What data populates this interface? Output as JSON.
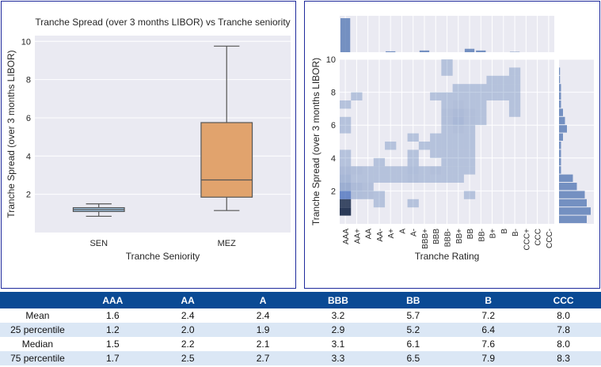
{
  "chart_data": [
    {
      "type": "box",
      "title": "Tranche Spread (over 3 months LIBOR) vs Tranche seniority",
      "xlabel": "Tranche Seniority",
      "ylabel": "Tranche Spread (over 3 months LIBOR)",
      "ylim": [
        0,
        10.3
      ],
      "yticks": [
        2,
        4,
        6,
        8,
        10
      ],
      "grid": true,
      "categories": [
        "SEN",
        "MEZ"
      ],
      "boxes": [
        {
          "name": "SEN",
          "min": 0.85,
          "q1": 1.1,
          "median": 1.2,
          "q3": 1.3,
          "max": 1.5,
          "color": "#a3c9e8"
        },
        {
          "name": "MEZ",
          "min": 1.15,
          "q1": 1.85,
          "median": 2.75,
          "q3": 5.75,
          "max": 9.75,
          "color": "#e1a36d"
        }
      ]
    },
    {
      "type": "heatmap",
      "xlabel": "Tranche Rating",
      "ylabel": "Tranche Spread (over 3 months LIBOR)",
      "x_categories": [
        "AAA",
        "AA+",
        "AA",
        "AA-",
        "A+",
        "A",
        "A-",
        "BBB+",
        "BBB",
        "BBB-",
        "BB+",
        "BB",
        "BB-",
        "B+",
        "B",
        "B-",
        "CCC+",
        "CCC",
        "CCC-"
      ],
      "ylim": [
        0,
        10
      ],
      "yticks": [
        2,
        4,
        6,
        8,
        10
      ],
      "bin_height": 0.5,
      "color": "#4c72b0",
      "cells": [
        [
          0,
          0.5,
          4
        ],
        [
          0,
          1.0,
          3.5
        ],
        [
          0,
          1.5,
          2.5
        ],
        [
          0,
          2.0,
          1.2
        ],
        [
          0,
          2.5,
          0.8
        ],
        [
          0,
          3.0,
          0.6
        ],
        [
          0,
          3.5,
          0.3
        ],
        [
          0,
          4.0,
          0.3
        ],
        [
          0,
          5.5,
          0.3
        ],
        [
          0,
          6.0,
          0.3
        ],
        [
          0,
          7.0,
          0.3
        ],
        [
          1,
          1.5,
          0.5
        ],
        [
          1,
          2.0,
          0.6
        ],
        [
          1,
          2.5,
          0.3
        ],
        [
          1,
          3.0,
          0.4
        ],
        [
          1,
          7.5,
          0.3
        ],
        [
          2,
          1.5,
          0.4
        ],
        [
          2,
          2.0,
          0.4
        ],
        [
          2,
          2.5,
          0.3
        ],
        [
          2,
          3.0,
          0.3
        ],
        [
          3,
          1.0,
          0.3
        ],
        [
          3,
          1.5,
          0.3
        ],
        [
          3,
          2.5,
          0.3
        ],
        [
          3,
          3.0,
          0.3
        ],
        [
          3,
          3.5,
          0.3
        ],
        [
          4,
          2.5,
          0.3
        ],
        [
          4,
          3.0,
          0.3
        ],
        [
          4,
          4.5,
          0.3
        ],
        [
          5,
          2.5,
          0.3
        ],
        [
          5,
          3.0,
          0.3
        ],
        [
          6,
          1.0,
          0.3
        ],
        [
          6,
          2.5,
          0.4
        ],
        [
          6,
          3.0,
          0.5
        ],
        [
          6,
          3.5,
          0.3
        ],
        [
          6,
          4.0,
          0.3
        ],
        [
          6,
          5.0,
          0.3
        ],
        [
          7,
          2.5,
          0.3
        ],
        [
          7,
          3.0,
          0.3
        ],
        [
          7,
          4.5,
          0.3
        ],
        [
          8,
          2.5,
          0.3
        ],
        [
          8,
          3.0,
          0.4
        ],
        [
          8,
          4.0,
          0.3
        ],
        [
          8,
          4.5,
          0.3
        ],
        [
          8,
          5.0,
          0.3
        ],
        [
          8,
          7.5,
          0.3
        ],
        [
          9,
          2.5,
          0.3
        ],
        [
          9,
          3.0,
          0.3
        ],
        [
          9,
          3.5,
          0.3
        ],
        [
          9,
          4.0,
          0.3
        ],
        [
          9,
          4.5,
          0.3
        ],
        [
          9,
          5.0,
          0.3
        ],
        [
          9,
          5.5,
          0.3
        ],
        [
          9,
          6.0,
          0.4
        ],
        [
          9,
          6.5,
          0.4
        ],
        [
          9,
          7.0,
          0.3
        ],
        [
          9,
          7.5,
          0.3
        ],
        [
          9,
          9.0,
          0.3
        ],
        [
          9,
          9.5,
          0.3
        ],
        [
          10,
          2.5,
          0.3
        ],
        [
          10,
          3.0,
          0.3
        ],
        [
          10,
          3.5,
          0.3
        ],
        [
          10,
          4.0,
          0.3
        ],
        [
          10,
          4.5,
          0.3
        ],
        [
          10,
          5.0,
          0.3
        ],
        [
          10,
          5.5,
          0.4
        ],
        [
          10,
          6.0,
          0.7
        ],
        [
          10,
          6.5,
          0.6
        ],
        [
          10,
          7.0,
          0.4
        ],
        [
          10,
          7.5,
          0.3
        ],
        [
          10,
          8.0,
          0.3
        ],
        [
          11,
          1.5,
          0.3
        ],
        [
          11,
          3.0,
          0.3
        ],
        [
          11,
          3.5,
          0.3
        ],
        [
          11,
          4.0,
          0.3
        ],
        [
          11,
          4.5,
          0.3
        ],
        [
          11,
          5.0,
          0.3
        ],
        [
          11,
          5.5,
          0.3
        ],
        [
          11,
          6.0,
          0.4
        ],
        [
          11,
          6.5,
          0.4
        ],
        [
          11,
          7.0,
          0.3
        ],
        [
          11,
          7.5,
          0.3
        ],
        [
          11,
          8.0,
          0.3
        ],
        [
          12,
          6.0,
          0.3
        ],
        [
          12,
          6.5,
          0.3
        ],
        [
          12,
          7.0,
          0.3
        ],
        [
          12,
          7.5,
          0.3
        ],
        [
          12,
          8.0,
          0.3
        ],
        [
          13,
          7.5,
          0.3
        ],
        [
          13,
          8.0,
          0.3
        ],
        [
          13,
          8.5,
          0.3
        ],
        [
          14,
          7.5,
          0.3
        ],
        [
          14,
          8.0,
          0.3
        ],
        [
          14,
          8.5,
          0.3
        ],
        [
          15,
          6.5,
          0.3
        ],
        [
          15,
          7.0,
          0.3
        ],
        [
          15,
          7.5,
          0.3
        ],
        [
          15,
          8.0,
          0.3
        ],
        [
          15,
          8.5,
          0.3
        ],
        [
          15,
          9.0,
          0.3
        ]
      ],
      "top_marginal": [
        30,
        0,
        0,
        0,
        0.8,
        0,
        0,
        1.5,
        0,
        0,
        0,
        3,
        1.5,
        0,
        0,
        0.3,
        0,
        0,
        0
      ],
      "right_marginal": [
        [
          0.5,
          14
        ],
        [
          1.0,
          16
        ],
        [
          1.5,
          14
        ],
        [
          2.0,
          13
        ],
        [
          2.5,
          9
        ],
        [
          3.0,
          7
        ],
        [
          3.5,
          1
        ],
        [
          4.0,
          1
        ],
        [
          4.5,
          1
        ],
        [
          5.0,
          1
        ],
        [
          5.5,
          2
        ],
        [
          6.0,
          4
        ],
        [
          6.5,
          3
        ],
        [
          7.0,
          2
        ],
        [
          7.5,
          1
        ],
        [
          8.0,
          1
        ],
        [
          8.5,
          1
        ],
        [
          9.0,
          0.5
        ],
        [
          9.5,
          0.5
        ]
      ]
    }
  ],
  "table": {
    "headers": [
      "",
      "AAA",
      "AA",
      "A",
      "BBB",
      "BB",
      "B",
      "CCC"
    ],
    "rows": [
      {
        "label": "Mean",
        "values": [
          "1.6",
          "2.4",
          "2.4",
          "3.2",
          "5.7",
          "7.2",
          "8.0"
        ]
      },
      {
        "label": "25 percentile",
        "values": [
          "1.2",
          "2.0",
          "1.9",
          "2.9",
          "5.2",
          "6.4",
          "7.8"
        ]
      },
      {
        "label": "Median",
        "values": [
          "1.5",
          "2.2",
          "2.1",
          "3.1",
          "6.1",
          "7.6",
          "8.0"
        ]
      },
      {
        "label": "75 percentile",
        "values": [
          "1.7",
          "2.5",
          "2.7",
          "3.3",
          "6.5",
          "7.9",
          "8.3"
        ]
      }
    ]
  }
}
